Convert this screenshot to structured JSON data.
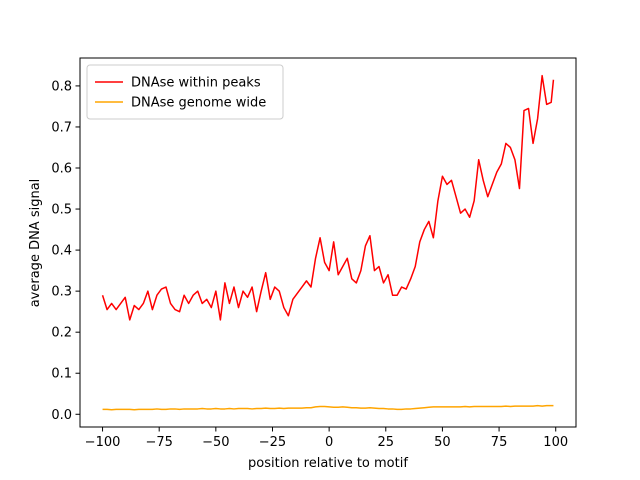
{
  "chart_data": {
    "type": "line",
    "xlabel": "position relative to motif",
    "ylabel": "average DNA signal",
    "x": [
      -100,
      -98,
      -96,
      -94,
      -92,
      -90,
      -88,
      -86,
      -84,
      -82,
      -80,
      -78,
      -76,
      -74,
      -72,
      -70,
      -68,
      -66,
      -64,
      -62,
      -60,
      -58,
      -56,
      -54,
      -52,
      -50,
      -48,
      -46,
      -44,
      -42,
      -40,
      -38,
      -36,
      -34,
      -32,
      -30,
      -28,
      -26,
      -24,
      -22,
      -20,
      -18,
      -16,
      -14,
      -12,
      -10,
      -8,
      -6,
      -4,
      -2,
      0,
      2,
      4,
      6,
      8,
      10,
      12,
      14,
      16,
      18,
      20,
      22,
      24,
      26,
      28,
      30,
      32,
      34,
      36,
      38,
      40,
      42,
      44,
      46,
      48,
      50,
      52,
      54,
      56,
      58,
      60,
      62,
      64,
      66,
      68,
      70,
      72,
      74,
      76,
      78,
      80,
      82,
      84,
      86,
      88,
      90,
      92,
      94,
      96,
      98,
      99
    ],
    "series": [
      {
        "name": "DNAse within peaks",
        "color": "#ff0000",
        "values": [
          0.29,
          0.255,
          0.27,
          0.255,
          0.27,
          0.285,
          0.23,
          0.265,
          0.255,
          0.27,
          0.3,
          0.255,
          0.29,
          0.305,
          0.31,
          0.27,
          0.255,
          0.25,
          0.29,
          0.27,
          0.29,
          0.3,
          0.27,
          0.28,
          0.26,
          0.3,
          0.23,
          0.32,
          0.27,
          0.31,
          0.26,
          0.3,
          0.285,
          0.31,
          0.25,
          0.3,
          0.345,
          0.28,
          0.31,
          0.3,
          0.26,
          0.24,
          0.28,
          0.295,
          0.31,
          0.325,
          0.31,
          0.38,
          0.43,
          0.37,
          0.35,
          0.42,
          0.34,
          0.36,
          0.38,
          0.33,
          0.32,
          0.35,
          0.41,
          0.435,
          0.35,
          0.36,
          0.32,
          0.34,
          0.29,
          0.29,
          0.31,
          0.305,
          0.33,
          0.36,
          0.42,
          0.45,
          0.47,
          0.43,
          0.52,
          0.58,
          0.56,
          0.57,
          0.53,
          0.49,
          0.5,
          0.48,
          0.52,
          0.62,
          0.57,
          0.53,
          0.56,
          0.59,
          0.61,
          0.66,
          0.65,
          0.62,
          0.55,
          0.74,
          0.745,
          0.66,
          0.72,
          0.825,
          0.755,
          0.76,
          0.815
        ]
      },
      {
        "name": "DNAse genome wide",
        "color": "#ffa500",
        "values": [
          0.012,
          0.012,
          0.011,
          0.012,
          0.012,
          0.012,
          0.012,
          0.011,
          0.012,
          0.012,
          0.012,
          0.012,
          0.013,
          0.012,
          0.012,
          0.013,
          0.013,
          0.012,
          0.013,
          0.013,
          0.013,
          0.013,
          0.014,
          0.013,
          0.013,
          0.014,
          0.013,
          0.013,
          0.014,
          0.013,
          0.014,
          0.014,
          0.014,
          0.013,
          0.014,
          0.014,
          0.015,
          0.014,
          0.014,
          0.015,
          0.014,
          0.015,
          0.015,
          0.015,
          0.015,
          0.016,
          0.016,
          0.018,
          0.019,
          0.019,
          0.018,
          0.017,
          0.017,
          0.018,
          0.017,
          0.016,
          0.016,
          0.015,
          0.015,
          0.016,
          0.015,
          0.014,
          0.014,
          0.013,
          0.013,
          0.012,
          0.012,
          0.013,
          0.013,
          0.014,
          0.015,
          0.016,
          0.017,
          0.018,
          0.018,
          0.018,
          0.018,
          0.018,
          0.018,
          0.018,
          0.019,
          0.018,
          0.019,
          0.019,
          0.019,
          0.019,
          0.019,
          0.019,
          0.019,
          0.02,
          0.019,
          0.02,
          0.02,
          0.02,
          0.02,
          0.02,
          0.021,
          0.02,
          0.021,
          0.021,
          0.021
        ]
      }
    ],
    "xlim": [
      -109.95,
      108.95
    ],
    "ylim": [
      -0.031,
      0.868
    ],
    "xticks": [
      {
        "value": -100,
        "label": "−100"
      },
      {
        "value": -75,
        "label": "−75"
      },
      {
        "value": -50,
        "label": "−50"
      },
      {
        "value": -25,
        "label": "−25"
      },
      0,
      25,
      50,
      75,
      100
    ],
    "yticks": [
      {
        "value": 0,
        "label": "0.0"
      },
      0.1,
      0.2,
      0.3,
      0.4,
      0.5,
      0.6,
      0.7,
      0.8
    ],
    "legend": "upper left"
  }
}
